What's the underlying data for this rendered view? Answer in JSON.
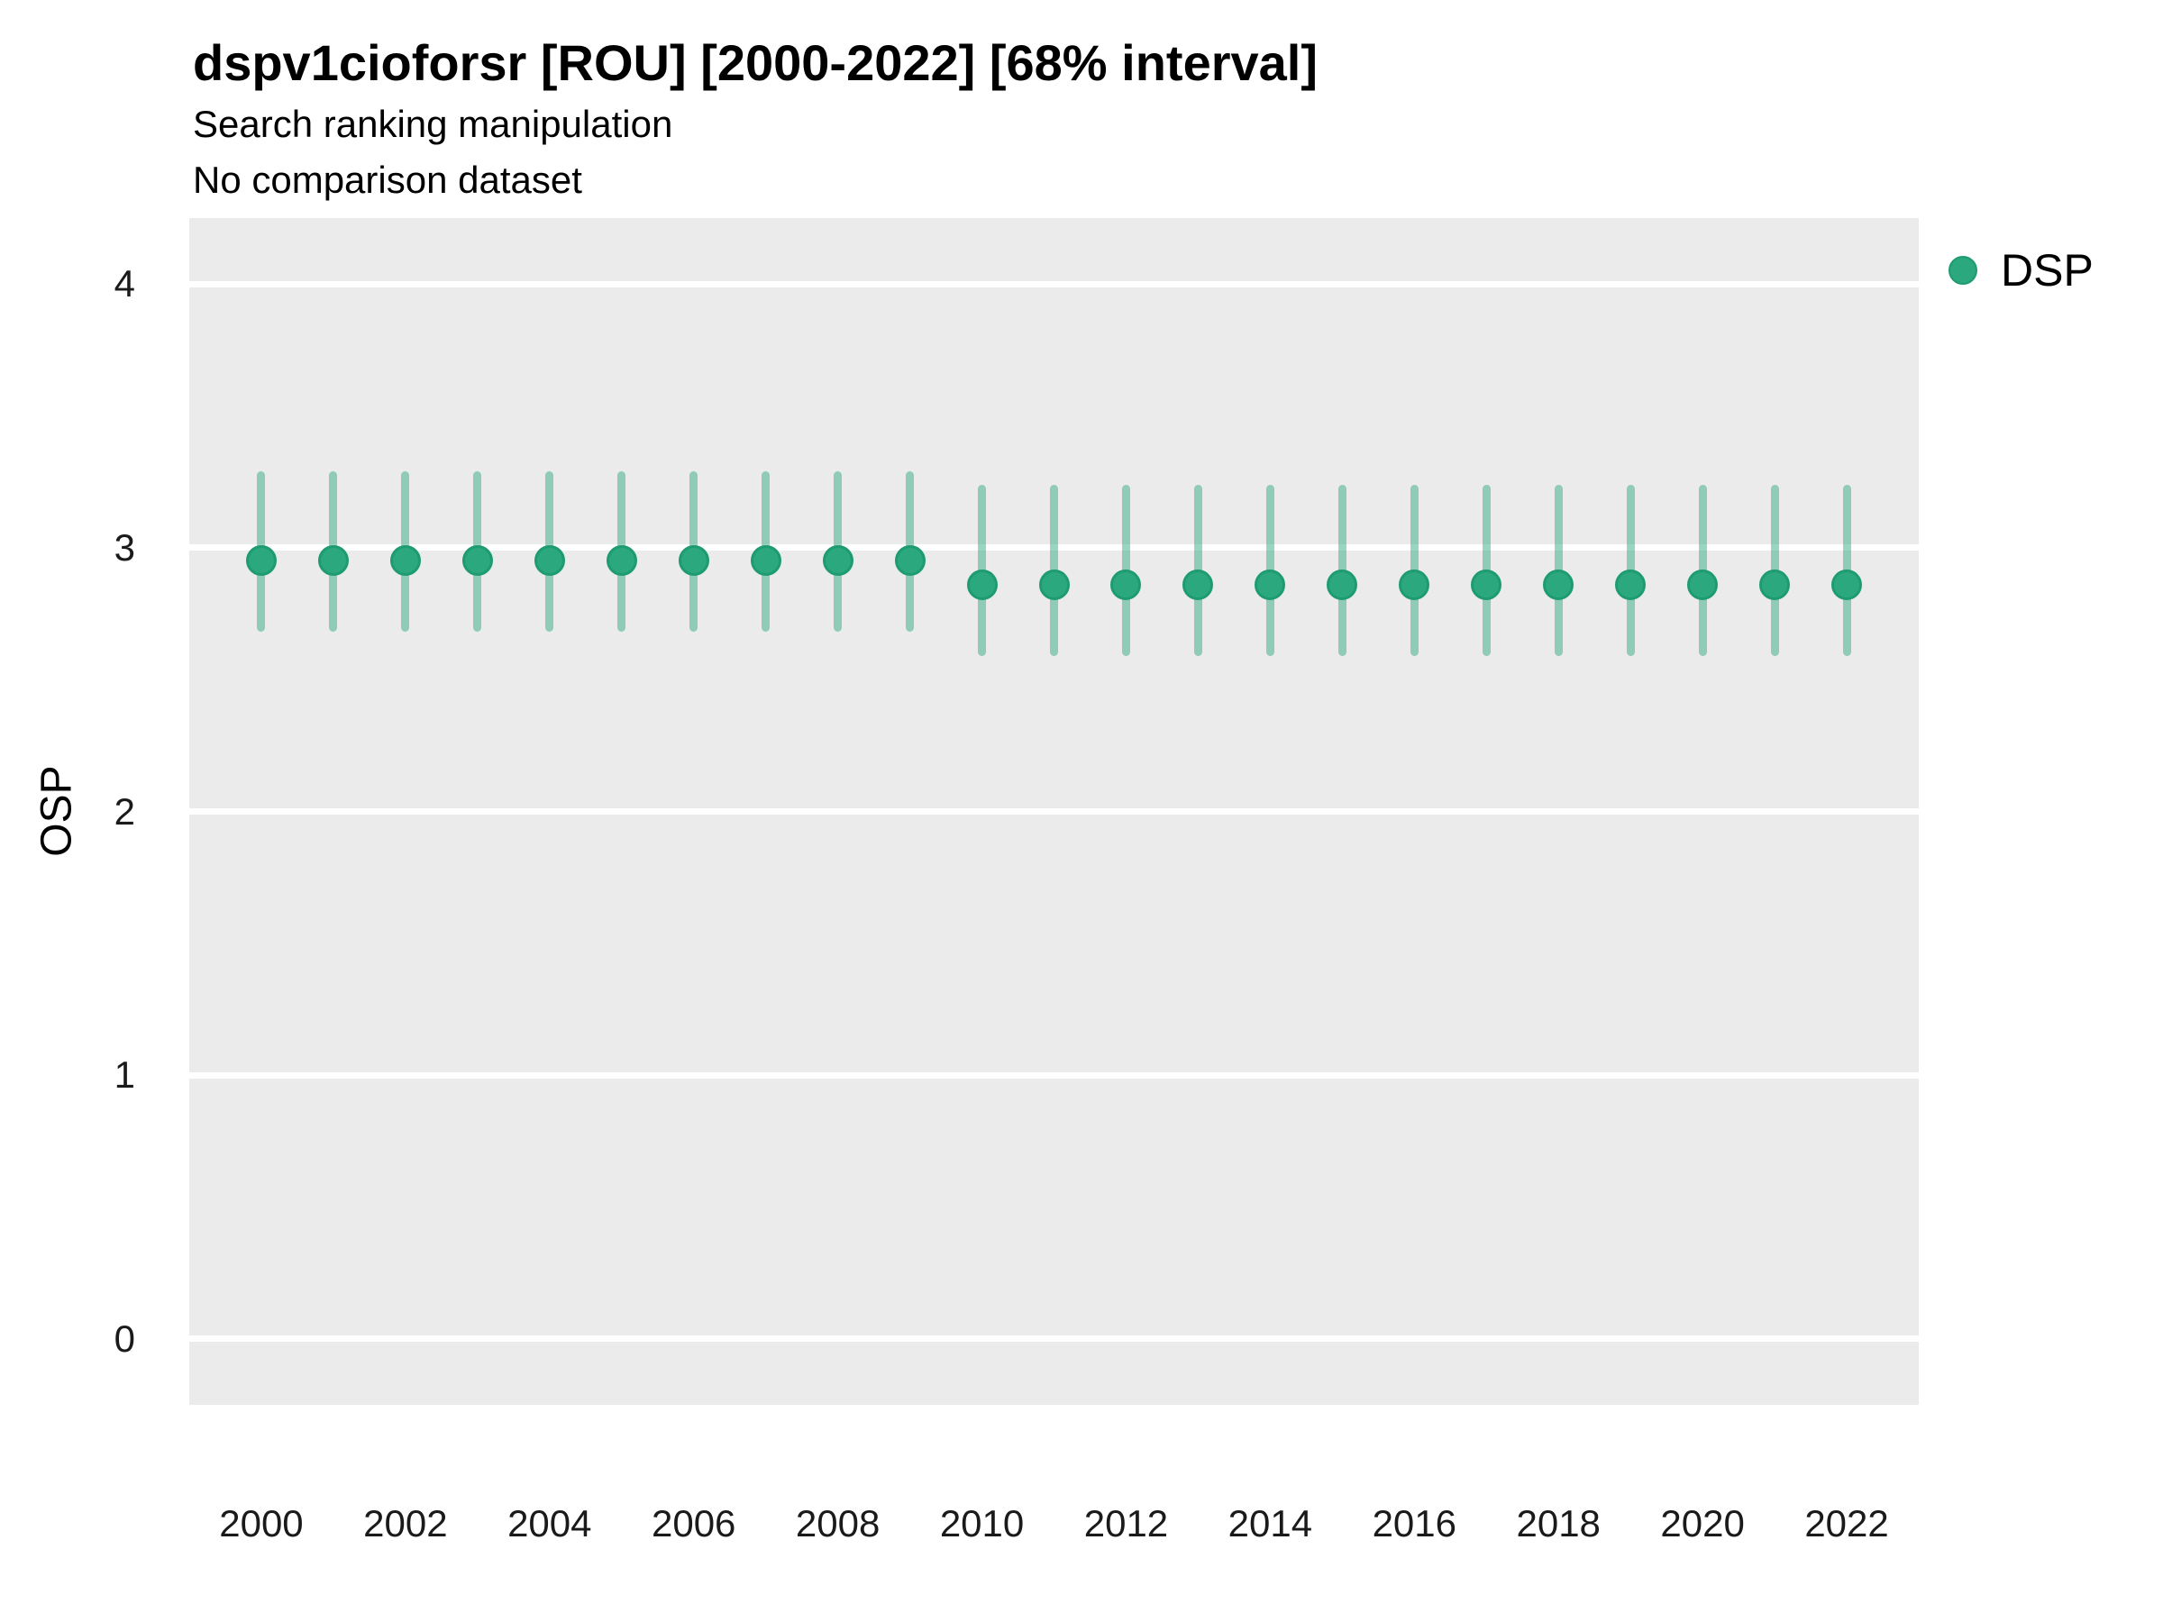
{
  "chart_data": {
    "type": "scatter",
    "title": "dspv1cioforsr [ROU] [2000-2022] [68% interval]",
    "subtitle": "Search ranking manipulation",
    "note": "No comparison dataset",
    "xlabel": "",
    "ylabel": "OSP",
    "legend_position": "right-top",
    "grid": "horizontal major gridlines, white on gray panel, no vertical gridlines",
    "x": [
      2000,
      2001,
      2002,
      2003,
      2004,
      2005,
      2006,
      2007,
      2008,
      2009,
      2010,
      2011,
      2012,
      2013,
      2014,
      2015,
      2016,
      2017,
      2018,
      2019,
      2020,
      2021,
      2022
    ],
    "series": [
      {
        "name": "DSP",
        "values": [
          2.95,
          2.95,
          2.95,
          2.95,
          2.95,
          2.95,
          2.95,
          2.95,
          2.95,
          2.95,
          2.86,
          2.86,
          2.86,
          2.86,
          2.86,
          2.86,
          2.86,
          2.86,
          2.86,
          2.86,
          2.86,
          2.86,
          2.86
        ],
        "lower_68": [
          2.68,
          2.68,
          2.68,
          2.68,
          2.68,
          2.68,
          2.68,
          2.68,
          2.68,
          2.68,
          2.59,
          2.59,
          2.59,
          2.59,
          2.59,
          2.59,
          2.59,
          2.59,
          2.59,
          2.59,
          2.59,
          2.59,
          2.59
        ],
        "upper_68": [
          3.29,
          3.29,
          3.29,
          3.29,
          3.29,
          3.29,
          3.29,
          3.29,
          3.29,
          3.29,
          3.24,
          3.24,
          3.24,
          3.24,
          3.24,
          3.24,
          3.24,
          3.24,
          3.24,
          3.24,
          3.24,
          3.24,
          3.24
        ]
      }
    ],
    "x_ticks": [
      2000,
      2002,
      2004,
      2006,
      2008,
      2010,
      2012,
      2014,
      2016,
      2018,
      2020,
      2022
    ],
    "y_ticks": [
      0,
      1,
      2,
      3,
      4
    ],
    "xlim": [
      1999,
      2023
    ],
    "ylim": [
      -0.25,
      4.25
    ],
    "colors": {
      "point": "#2BA87D",
      "point_stroke": "#1E9B6F",
      "interval": "rgba(43, 168, 125, 0.48)",
      "panel_bg": "#EBEBEB",
      "gridline": "#FFFFFF",
      "text": "#000000"
    }
  }
}
